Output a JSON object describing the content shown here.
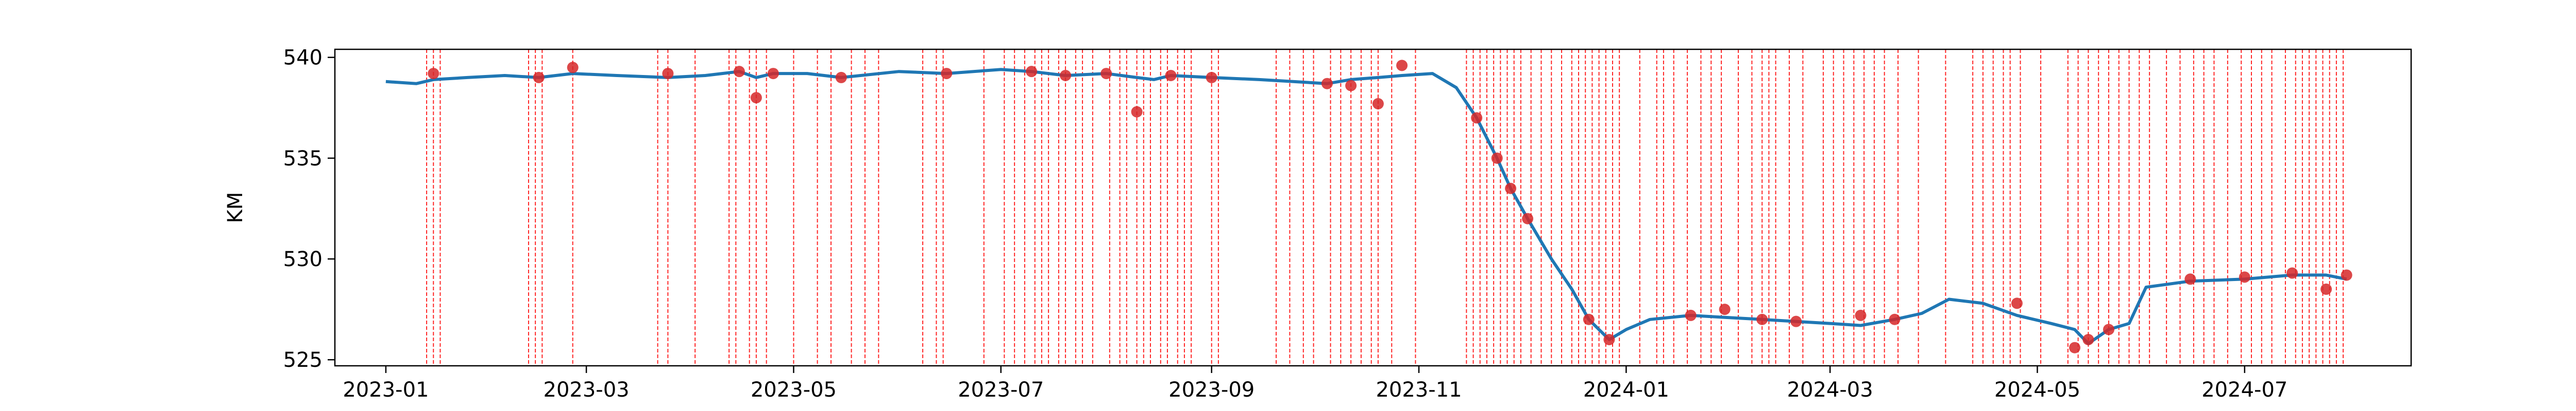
{
  "chart_data": {
    "type": "line",
    "title": "",
    "xlabel": "",
    "ylabel": "KM",
    "xlim": [
      "2022-12-17",
      "2024-08-19"
    ],
    "ylim": [
      524.7,
      540.4
    ],
    "grid": false,
    "xticks": [
      "2023-01",
      "2023-03",
      "2023-05",
      "2023-07",
      "2023-09",
      "2023-11",
      "2024-01",
      "2024-03",
      "2024-05",
      "2024-07"
    ],
    "yticks": [
      525,
      530,
      535,
      540
    ],
    "colors": {
      "line": "#1f77b4",
      "marker": "#d62728",
      "vline": "#ff0000"
    },
    "series": [
      {
        "x": [
          "2023-01-01",
          "2023-01-10",
          "2023-01-15",
          "2023-01-25",
          "2023-02-05",
          "2023-02-15",
          "2023-02-25",
          "2023-03-10",
          "2023-03-25",
          "2023-04-05",
          "2023-04-15",
          "2023-04-20",
          "2023-04-25",
          "2023-05-05",
          "2023-05-15",
          "2023-06-01",
          "2023-06-15",
          "2023-07-01",
          "2023-07-10",
          "2023-07-20",
          "2023-08-01",
          "2023-08-10",
          "2023-08-15",
          "2023-08-20",
          "2023-09-01",
          "2023-09-15",
          "2023-09-25",
          "2023-10-05",
          "2023-10-12",
          "2023-10-20",
          "2023-10-27",
          "2023-11-05",
          "2023-11-12",
          "2023-11-18",
          "2023-11-24",
          "2023-11-28",
          "2023-12-03",
          "2023-12-10",
          "2023-12-16",
          "2023-12-21",
          "2023-12-27",
          "2024-01-01",
          "2024-01-08",
          "2024-01-20",
          "2024-01-30",
          "2024-02-10",
          "2024-02-20",
          "2024-03-01",
          "2024-03-10",
          "2024-03-20",
          "2024-03-28",
          "2024-04-05",
          "2024-04-15",
          "2024-04-25",
          "2024-05-05",
          "2024-05-12",
          "2024-05-16",
          "2024-05-22",
          "2024-05-28",
          "2024-06-02",
          "2024-06-15",
          "2024-07-01",
          "2024-07-15",
          "2024-07-25",
          "2024-07-31"
        ],
        "values": [
          538.8,
          538.7,
          538.9,
          539.0,
          539.1,
          539.0,
          539.2,
          539.1,
          539.0,
          539.1,
          539.3,
          539.0,
          539.2,
          539.2,
          539.0,
          539.3,
          539.2,
          539.4,
          539.3,
          539.1,
          539.2,
          539.0,
          538.9,
          539.1,
          539.0,
          538.9,
          538.8,
          538.7,
          538.9,
          539.0,
          539.1,
          539.2,
          538.5,
          537.0,
          535.0,
          533.5,
          532.0,
          530.0,
          528.5,
          527.0,
          526.0,
          526.5,
          527.0,
          527.2,
          527.1,
          527.0,
          526.9,
          526.8,
          526.7,
          527.0,
          527.3,
          528.0,
          527.8,
          527.2,
          526.8,
          526.5,
          525.8,
          526.5,
          526.8,
          528.6,
          528.9,
          529.0,
          529.2,
          529.2,
          529.0
        ]
      }
    ],
    "markers": {
      "x": [
        "2023-01-15",
        "2023-02-15",
        "2023-02-25",
        "2023-03-25",
        "2023-04-15",
        "2023-04-20",
        "2023-04-25",
        "2023-05-15",
        "2023-06-15",
        "2023-07-10",
        "2023-07-20",
        "2023-08-01",
        "2023-08-10",
        "2023-08-20",
        "2023-09-01",
        "2023-10-05",
        "2023-10-12",
        "2023-10-20",
        "2023-10-27",
        "2023-11-18",
        "2023-11-24",
        "2023-11-28",
        "2023-12-03",
        "2023-12-21",
        "2023-12-27",
        "2024-01-20",
        "2024-01-30",
        "2024-02-10",
        "2024-02-20",
        "2024-03-10",
        "2024-03-20",
        "2024-04-25",
        "2024-05-12",
        "2024-05-16",
        "2024-05-22",
        "2024-06-15",
        "2024-07-01",
        "2024-07-15",
        "2024-07-25",
        "2024-07-31"
      ],
      "values": [
        539.2,
        539.0,
        539.5,
        539.2,
        539.3,
        538.0,
        539.2,
        539.0,
        539.2,
        539.3,
        539.1,
        539.2,
        537.3,
        539.1,
        539.0,
        538.7,
        538.6,
        537.7,
        539.6,
        537.0,
        535.0,
        533.5,
        532.0,
        527.0,
        526.0,
        527.2,
        527.5,
        527.0,
        526.9,
        527.2,
        527.0,
        527.8,
        525.6,
        526.0,
        526.5,
        529.0,
        529.1,
        529.3,
        528.5,
        529.2
      ]
    },
    "vlines": [
      "2023-01-13",
      "2023-01-15",
      "2023-01-17",
      "2023-02-12",
      "2023-02-14",
      "2023-02-16",
      "2023-02-25",
      "2023-03-22",
      "2023-03-25",
      "2023-04-02",
      "2023-04-12",
      "2023-04-14",
      "2023-04-18",
      "2023-04-20",
      "2023-04-23",
      "2023-05-01",
      "2023-05-08",
      "2023-05-12",
      "2023-05-18",
      "2023-05-22",
      "2023-05-26",
      "2023-06-08",
      "2023-06-12",
      "2023-06-14",
      "2023-06-26",
      "2023-07-02",
      "2023-07-05",
      "2023-07-08",
      "2023-07-11",
      "2023-07-13",
      "2023-07-15",
      "2023-07-18",
      "2023-07-20",
      "2023-07-23",
      "2023-07-25",
      "2023-07-28",
      "2023-08-02",
      "2023-08-05",
      "2023-08-07",
      "2023-08-10",
      "2023-08-12",
      "2023-08-14",
      "2023-08-17",
      "2023-08-19",
      "2023-08-22",
      "2023-08-24",
      "2023-08-26",
      "2023-09-01",
      "2023-09-03",
      "2023-09-20",
      "2023-09-24",
      "2023-09-28",
      "2023-10-01",
      "2023-10-06",
      "2023-10-09",
      "2023-10-12",
      "2023-10-15",
      "2023-10-18",
      "2023-10-20",
      "2023-10-24",
      "2023-10-31",
      "2023-11-15",
      "2023-11-17",
      "2023-11-19",
      "2023-11-21",
      "2023-11-23",
      "2023-11-25",
      "2023-11-27",
      "2023-11-29",
      "2023-12-01",
      "2023-12-04",
      "2023-12-07",
      "2023-12-10",
      "2023-12-13",
      "2023-12-16",
      "2023-12-18",
      "2023-12-20",
      "2023-12-22",
      "2023-12-24",
      "2023-12-26",
      "2023-12-28",
      "2023-12-30",
      "2024-01-05",
      "2024-01-10",
      "2024-01-12",
      "2024-01-15",
      "2024-01-19",
      "2024-01-23",
      "2024-01-26",
      "2024-01-29",
      "2024-02-03",
      "2024-02-07",
      "2024-02-10",
      "2024-02-12",
      "2024-02-14",
      "2024-02-18",
      "2024-02-22",
      "2024-02-28",
      "2024-03-02",
      "2024-03-05",
      "2024-03-08",
      "2024-03-11",
      "2024-03-14",
      "2024-03-17",
      "2024-03-21",
      "2024-03-27",
      "2024-04-04",
      "2024-04-12",
      "2024-04-15",
      "2024-04-18",
      "2024-04-21",
      "2024-04-23",
      "2024-04-26",
      "2024-05-02",
      "2024-05-10",
      "2024-05-13",
      "2024-05-16",
      "2024-05-19",
      "2024-05-22",
      "2024-05-25",
      "2024-05-28",
      "2024-05-31",
      "2024-06-03",
      "2024-06-08",
      "2024-06-12",
      "2024-06-16",
      "2024-06-19",
      "2024-06-22",
      "2024-06-26",
      "2024-06-30",
      "2024-07-03",
      "2024-07-06",
      "2024-07-09",
      "2024-07-13",
      "2024-07-16",
      "2024-07-18",
      "2024-07-20",
      "2024-07-22",
      "2024-07-24",
      "2024-07-26",
      "2024-07-28",
      "2024-07-30"
    ]
  }
}
